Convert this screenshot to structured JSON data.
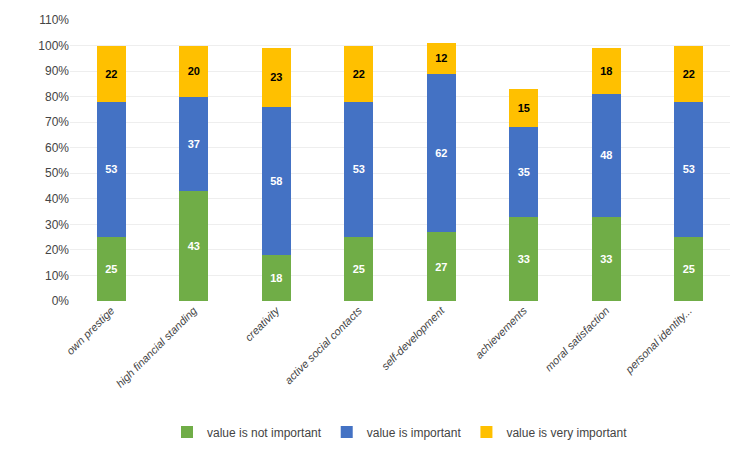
{
  "chart_data": {
    "type": "bar",
    "stacked": true,
    "categories": [
      "own prestige",
      "high financial standing",
      "creativity",
      "active social contacts",
      "self-development",
      "achievements",
      "moral satisfaction",
      "personal identity..."
    ],
    "series": [
      {
        "name": "value is not important",
        "color": "#70AD47",
        "values": [
          25,
          43,
          18,
          25,
          27,
          33,
          33,
          25
        ]
      },
      {
        "name": "value is important",
        "color": "#4472C4",
        "values": [
          53,
          37,
          58,
          53,
          62,
          35,
          48,
          53
        ]
      },
      {
        "name": "value is very important",
        "color": "#FFC000",
        "values": [
          22,
          20,
          23,
          22,
          12,
          15,
          18,
          22
        ]
      }
    ],
    "ylim": [
      0,
      110
    ],
    "yticks": [
      {
        "value": 0,
        "label": "0%"
      },
      {
        "value": 10,
        "label": "10%"
      },
      {
        "value": 20,
        "label": "20%"
      },
      {
        "value": 30,
        "label": "30%"
      },
      {
        "value": 40,
        "label": "40%"
      },
      {
        "value": 50,
        "label": "50%"
      },
      {
        "value": 60,
        "label": "60%"
      },
      {
        "value": 70,
        "label": "70%"
      },
      {
        "value": 80,
        "label": "80%"
      },
      {
        "value": 90,
        "label": "90%"
      },
      {
        "value": 100,
        "label": "100%"
      },
      {
        "value": 110,
        "label": "110%"
      }
    ],
    "grid": true,
    "legend": "bottom",
    "data_labels": true
  }
}
